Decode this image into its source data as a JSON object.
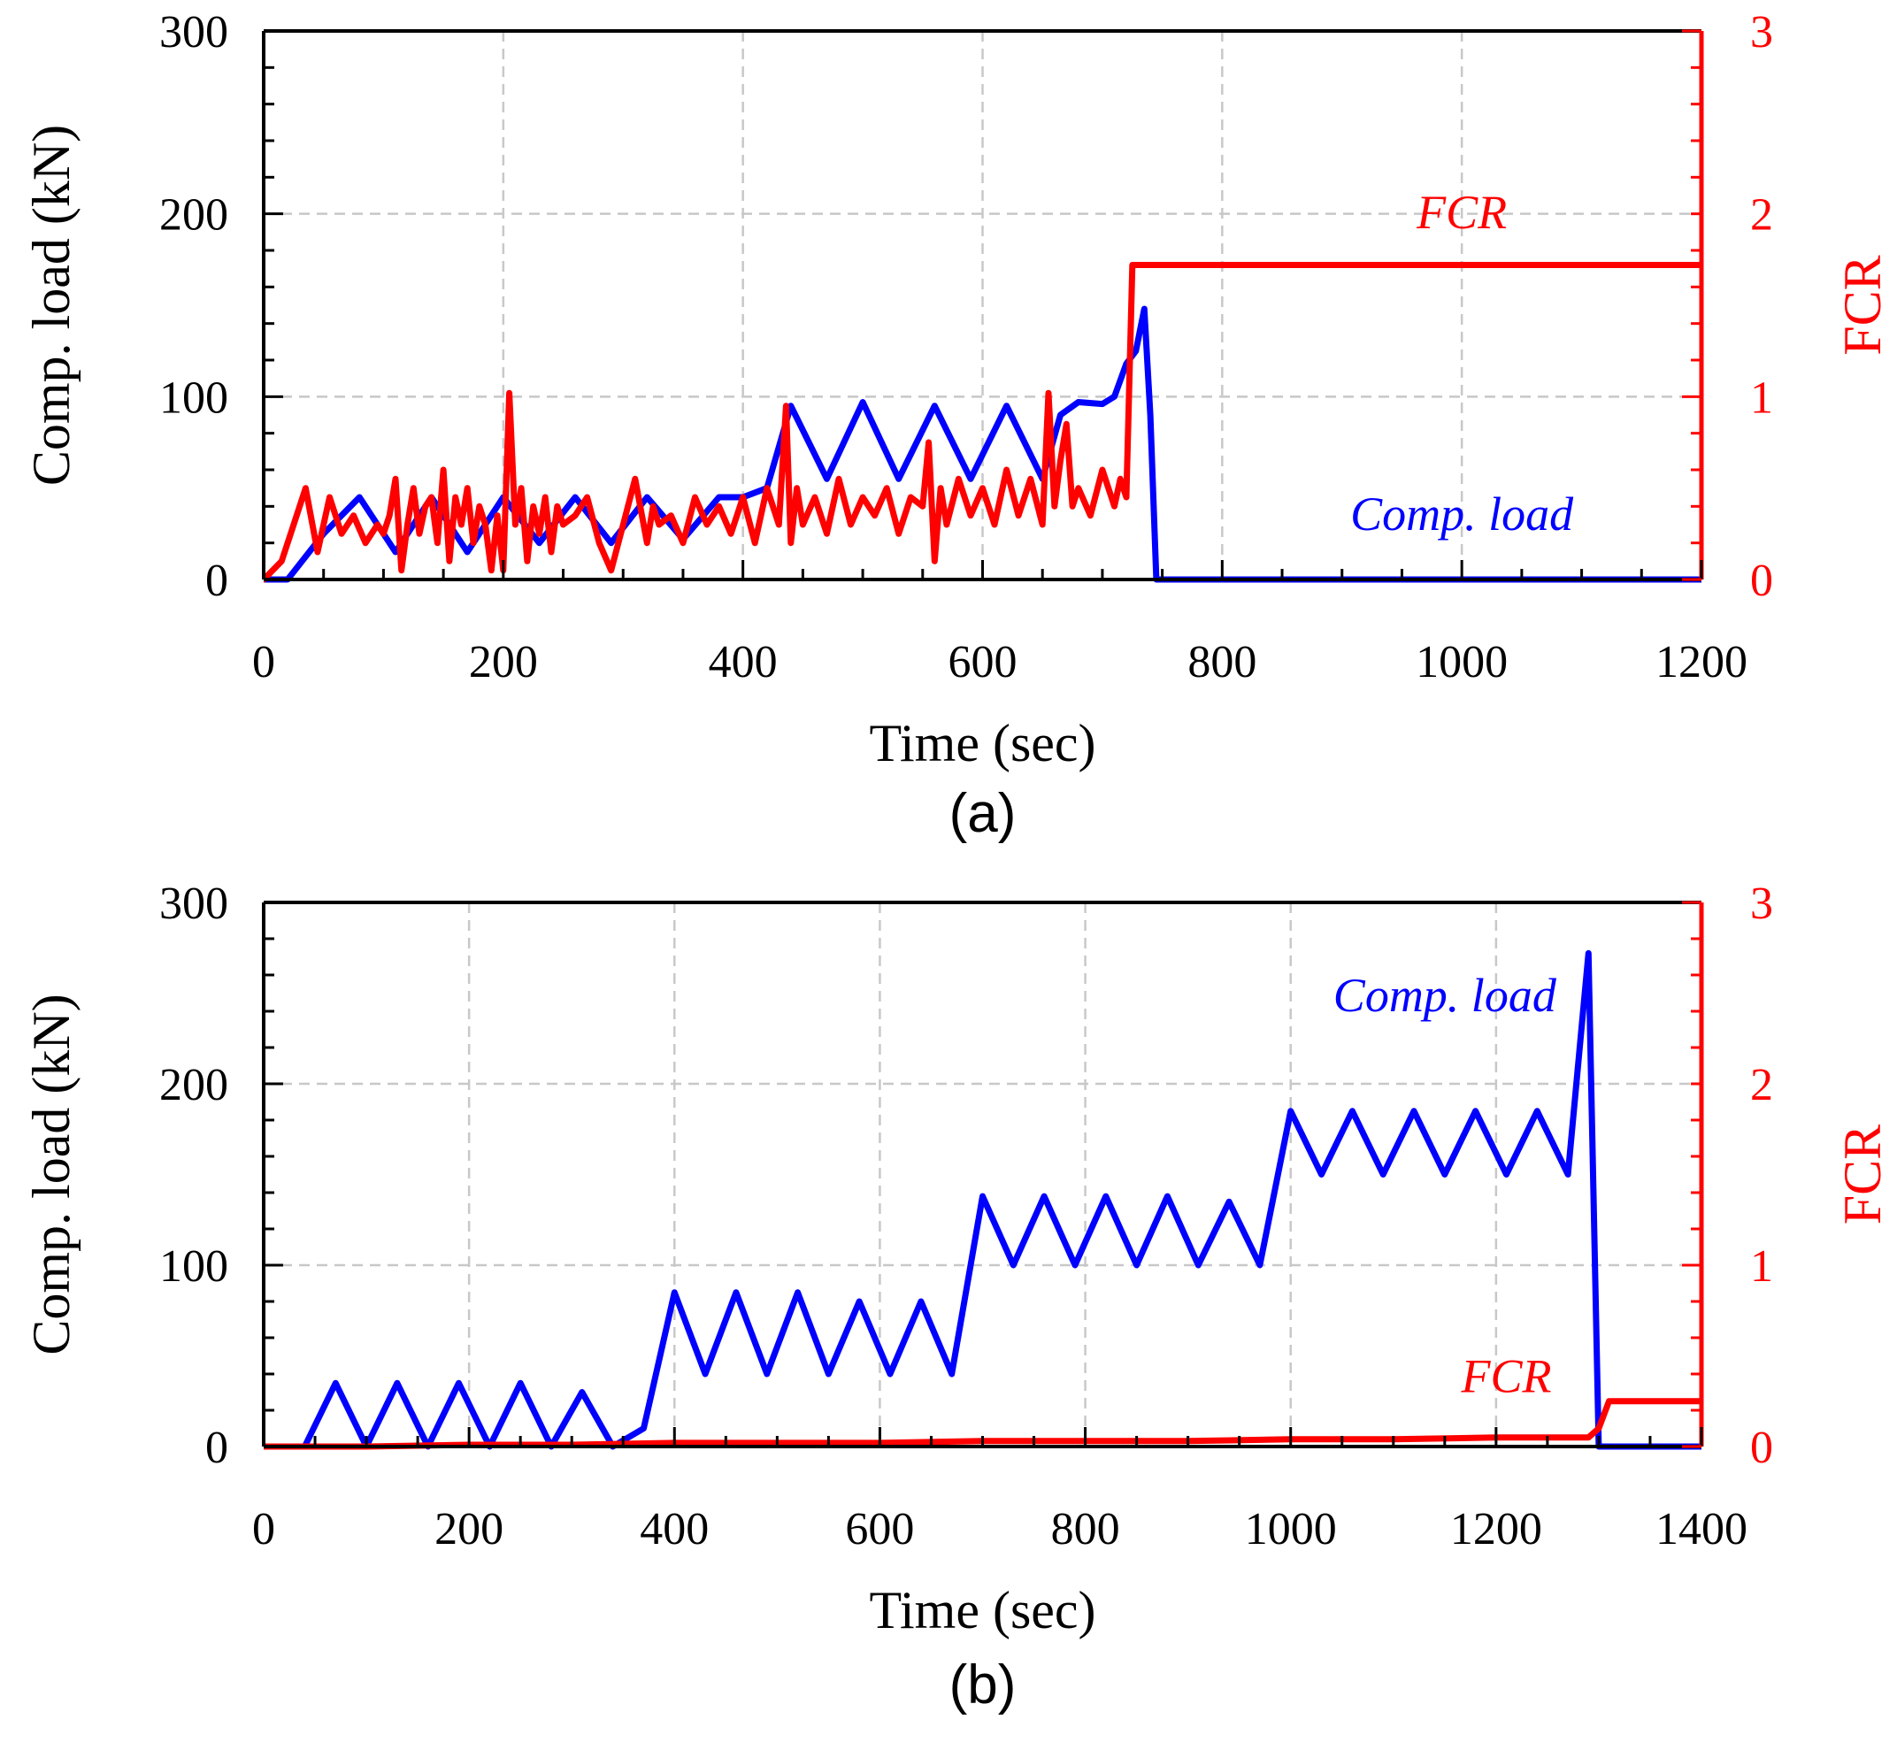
{
  "colors": {
    "load": "#0000ff",
    "fcr": "#ff0000",
    "axis": "#000000",
    "grid": "#c8c8c8"
  },
  "chart_data": [
    {
      "panel": "(a)",
      "type": "line",
      "xlabel": "Time (sec)",
      "ylabel": "Comp. load (kN)",
      "y2label": "FCR",
      "xlim": [
        0,
        1200
      ],
      "ylim": [
        0,
        300
      ],
      "y2lim": [
        0,
        3
      ],
      "xticks": [
        0,
        200,
        400,
        600,
        800,
        1000,
        1200
      ],
      "yticks": [
        0,
        100,
        200,
        300
      ],
      "y2ticks": [
        0,
        1,
        2,
        3
      ],
      "series": [
        {
          "name": "Comp. load",
          "axis": "left",
          "x": [
            0,
            20,
            50,
            80,
            110,
            140,
            170,
            200,
            230,
            260,
            290,
            320,
            350,
            380,
            400,
            420,
            440,
            470,
            500,
            530,
            560,
            590,
            620,
            650,
            665,
            680,
            700,
            710,
            720,
            728,
            735,
            740,
            745,
            760,
            1200
          ],
          "y": [
            0,
            0,
            25,
            45,
            15,
            45,
            15,
            45,
            20,
            45,
            20,
            45,
            22,
            45,
            45,
            50,
            95,
            55,
            97,
            55,
            95,
            55,
            95,
            55,
            90,
            97,
            96,
            100,
            118,
            125,
            148,
            90,
            0,
            0,
            0
          ]
        },
        {
          "name": "FCR",
          "axis": "right",
          "x": [
            0,
            15,
            25,
            35,
            45,
            55,
            65,
            75,
            85,
            95,
            100,
            105,
            110,
            115,
            120,
            125,
            130,
            135,
            140,
            145,
            150,
            155,
            160,
            165,
            170,
            175,
            180,
            185,
            190,
            195,
            200,
            205,
            210,
            215,
            220,
            225,
            230,
            235,
            240,
            245,
            250,
            260,
            270,
            280,
            290,
            300,
            310,
            320,
            325,
            330,
            340,
            350,
            360,
            370,
            380,
            390,
            400,
            410,
            420,
            430,
            436,
            440,
            445,
            450,
            460,
            470,
            480,
            490,
            500,
            510,
            520,
            530,
            540,
            550,
            555,
            560,
            565,
            570,
            580,
            590,
            600,
            610,
            620,
            630,
            640,
            650,
            655,
            660,
            665,
            670,
            675,
            680,
            690,
            700,
            710,
            715,
            720,
            725,
            1200
          ],
          "y": [
            0,
            0.1,
            0.3,
            0.5,
            0.15,
            0.45,
            0.25,
            0.35,
            0.2,
            0.3,
            0.25,
            0.35,
            0.55,
            0.05,
            0.3,
            0.5,
            0.25,
            0.4,
            0.45,
            0.2,
            0.6,
            0.1,
            0.45,
            0.3,
            0.5,
            0.2,
            0.4,
            0.3,
            0.05,
            0.35,
            0.05,
            1.02,
            0.3,
            0.5,
            0.1,
            0.4,
            0.25,
            0.45,
            0.15,
            0.4,
            0.3,
            0.35,
            0.45,
            0.2,
            0.05,
            0.3,
            0.55,
            0.2,
            0.4,
            0.3,
            0.35,
            0.2,
            0.45,
            0.3,
            0.4,
            0.25,
            0.45,
            0.2,
            0.5,
            0.3,
            0.95,
            0.2,
            0.5,
            0.3,
            0.45,
            0.25,
            0.55,
            0.3,
            0.45,
            0.35,
            0.5,
            0.25,
            0.45,
            0.4,
            0.75,
            0.1,
            0.5,
            0.3,
            0.55,
            0.35,
            0.5,
            0.3,
            0.6,
            0.35,
            0.55,
            0.3,
            1.02,
            0.4,
            0.65,
            0.85,
            0.4,
            0.5,
            0.35,
            0.6,
            0.4,
            0.55,
            0.45,
            1.72,
            1.72
          ]
        }
      ],
      "annotations": [
        {
          "text": "FCR",
          "series": "FCR",
          "x": 1000,
          "y_right": 1.92
        },
        {
          "text": "Comp. load",
          "series": "Comp. load",
          "x": 1000,
          "y": 27
        }
      ]
    },
    {
      "panel": "(b)",
      "type": "line",
      "xlabel": "Time (sec)",
      "ylabel": "Comp. load (kN)",
      "y2label": "FCR",
      "xlim": [
        0,
        1400
      ],
      "ylim": [
        0,
        300
      ],
      "y2lim": [
        0,
        3
      ],
      "xticks": [
        0,
        200,
        400,
        600,
        800,
        1000,
        1200,
        1400
      ],
      "yticks": [
        0,
        100,
        200,
        300
      ],
      "y2ticks": [
        0,
        1,
        2,
        3
      ],
      "series": [
        {
          "name": "Comp. load",
          "axis": "left",
          "x": [
            0,
            20,
            40,
            70,
            100,
            130,
            160,
            190,
            220,
            250,
            280,
            310,
            340,
            370,
            400,
            430,
            460,
            490,
            520,
            550,
            580,
            610,
            640,
            670,
            700,
            730,
            760,
            790,
            820,
            850,
            880,
            910,
            940,
            970,
            1000,
            1030,
            1060,
            1090,
            1120,
            1150,
            1180,
            1210,
            1240,
            1270,
            1290,
            1300,
            1310,
            1320,
            1400
          ],
          "y": [
            0,
            0,
            0,
            35,
            0,
            35,
            0,
            35,
            0,
            35,
            0,
            30,
            0,
            10,
            85,
            40,
            85,
            40,
            85,
            40,
            80,
            40,
            80,
            40,
            138,
            100,
            138,
            100,
            138,
            100,
            138,
            100,
            135,
            100,
            185,
            150,
            185,
            150,
            185,
            150,
            185,
            150,
            185,
            150,
            272,
            0,
            0,
            0,
            0
          ]
        },
        {
          "name": "FCR",
          "axis": "right",
          "x": [
            0,
            100,
            200,
            300,
            400,
            500,
            600,
            700,
            800,
            900,
            1000,
            1100,
            1200,
            1290,
            1300,
            1310,
            1320,
            1400
          ],
          "y": [
            0,
            0,
            0.01,
            0.01,
            0.02,
            0.02,
            0.02,
            0.03,
            0.03,
            0.03,
            0.04,
            0.04,
            0.05,
            0.05,
            0.1,
            0.25,
            0.25,
            0.25
          ]
        }
      ],
      "annotations": [
        {
          "text": "FCR",
          "series": "FCR",
          "x": 1210,
          "y_right": 0.3
        },
        {
          "text": "Comp. load",
          "series": "Comp. load",
          "x": 1150,
          "y": 240
        }
      ]
    }
  ]
}
